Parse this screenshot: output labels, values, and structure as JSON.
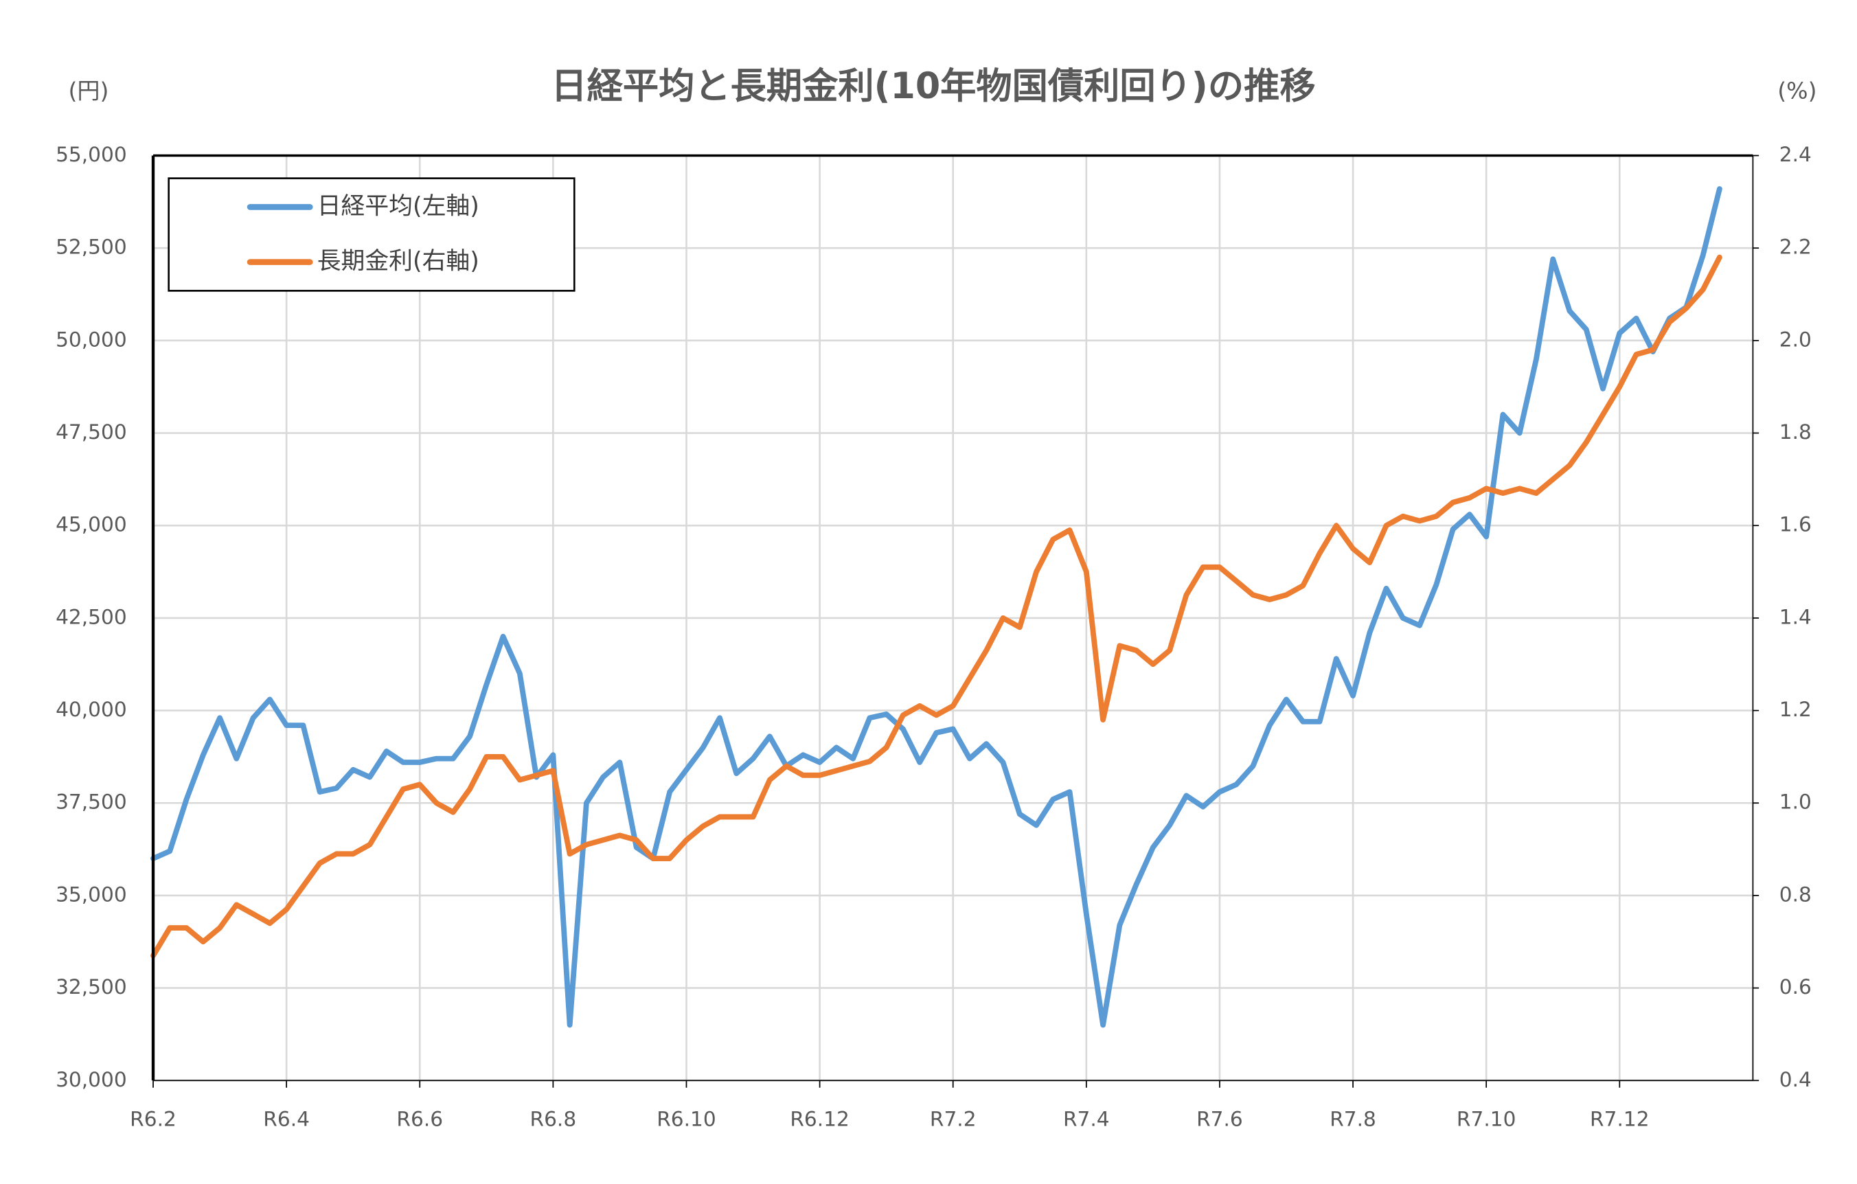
{
  "chart_data": {
    "type": "line",
    "title": "日経平均と長期金利(10年物国債利回り)の推移",
    "ylabel": "(円)",
    "y2label": "(%)",
    "categories": [
      "R6.2",
      null,
      null,
      null,
      null,
      null,
      null,
      null,
      "R6.4",
      null,
      null,
      null,
      null,
      null,
      null,
      null,
      "R6.6",
      null,
      null,
      null,
      null,
      null,
      null,
      null,
      "R6.8",
      null,
      null,
      null,
      null,
      null,
      null,
      null,
      "R6.10",
      null,
      null,
      null,
      null,
      null,
      null,
      null,
      "R6.12",
      null,
      null,
      null,
      null,
      null,
      null,
      null,
      "R7.2",
      null,
      null,
      null,
      null,
      null,
      null,
      null,
      "R7.4",
      null,
      null,
      null,
      null,
      null,
      null,
      null,
      "R7.6",
      null,
      null,
      null,
      null,
      null,
      null,
      null,
      "R7.8",
      null,
      null,
      null,
      null,
      null,
      null,
      null,
      "R7.10",
      null,
      null,
      null,
      null,
      null,
      null,
      null,
      "R7.12",
      null,
      null,
      null,
      null,
      null,
      null
    ],
    "series": [
      {
        "name": "日経平均(左軸)",
        "color": "#5b9bd5",
        "axis": "y",
        "values": [
          36000,
          36200,
          37600,
          38800,
          39800,
          38700,
          39800,
          40300,
          39600,
          39600,
          37800,
          37900,
          38400,
          38200,
          38900,
          38600,
          38600,
          38700,
          38700,
          39300,
          40700,
          42000,
          41000,
          38200,
          38800,
          31500,
          37500,
          38200,
          38600,
          36300,
          36000,
          37800,
          38400,
          39000,
          39800,
          38300,
          38700,
          39300,
          38500,
          38800,
          38600,
          39000,
          38700,
          39800,
          39900,
          39500,
          38600,
          39400,
          39500,
          38700,
          39100,
          38600,
          37200,
          36900,
          37600,
          37800,
          34500,
          31500,
          34200,
          35300,
          36300,
          36900,
          37700,
          37400,
          37800,
          38000,
          38500,
          39600,
          40300,
          39700,
          39700,
          41400,
          40400,
          42100,
          43300,
          42500,
          42300,
          43400,
          44900,
          45300,
          44700,
          48000,
          47500,
          49500,
          52200,
          50800,
          50300,
          48700,
          50200,
          50600,
          49700,
          50600,
          50900,
          52300,
          54100
        ]
      },
      {
        "name": "長期金利(右軸)",
        "color": "#ed7d31",
        "axis": "y2",
        "values": [
          0.67,
          0.73,
          0.73,
          0.7,
          0.73,
          0.78,
          0.76,
          0.74,
          0.77,
          0.82,
          0.87,
          0.89,
          0.89,
          0.91,
          0.97,
          1.03,
          1.04,
          1.0,
          0.98,
          1.03,
          1.1,
          1.1,
          1.05,
          1.06,
          1.07,
          0.89,
          0.91,
          0.92,
          0.93,
          0.92,
          0.88,
          0.88,
          0.92,
          0.95,
          0.97,
          0.97,
          0.97,
          1.05,
          1.08,
          1.06,
          1.06,
          1.07,
          1.08,
          1.09,
          1.12,
          1.19,
          1.21,
          1.19,
          1.21,
          1.27,
          1.33,
          1.4,
          1.38,
          1.5,
          1.57,
          1.59,
          1.5,
          1.18,
          1.34,
          1.33,
          1.3,
          1.33,
          1.45,
          1.51,
          1.51,
          1.48,
          1.45,
          1.44,
          1.45,
          1.47,
          1.54,
          1.6,
          1.55,
          1.52,
          1.6,
          1.62,
          1.61,
          1.62,
          1.65,
          1.66,
          1.68,
          1.67,
          1.68,
          1.67,
          1.7,
          1.73,
          1.78,
          1.84,
          1.9,
          1.97,
          1.98,
          2.04,
          2.07,
          2.11,
          2.18
        ]
      }
    ],
    "ylim": [
      30000,
      55000
    ],
    "yticks": [
      {
        "value": 30000,
        "label": "30,000"
      },
      {
        "value": 32500,
        "label": "32,500"
      },
      {
        "value": 35000,
        "label": "35,000"
      },
      {
        "value": 37500,
        "label": "37,500"
      },
      {
        "value": 40000,
        "label": "40,000"
      },
      {
        "value": 42500,
        "label": "42,500"
      },
      {
        "value": 45000,
        "label": "45,000"
      },
      {
        "value": 47500,
        "label": "47,500"
      },
      {
        "value": 50000,
        "label": "50,000"
      },
      {
        "value": 52500,
        "label": "52,500"
      },
      {
        "value": 55000,
        "label": "55,000"
      }
    ],
    "y2lim": [
      0.4,
      2.4
    ],
    "y2ticks": [
      0.4,
      0.6,
      0.8,
      {
        "value": 1.0,
        "label": "1.0"
      },
      1.2,
      1.4,
      1.6,
      1.8,
      {
        "value": 2.0,
        "label": "2.0"
      },
      2.2,
      2.4
    ],
    "grid": true,
    "legend": "upper left"
  }
}
